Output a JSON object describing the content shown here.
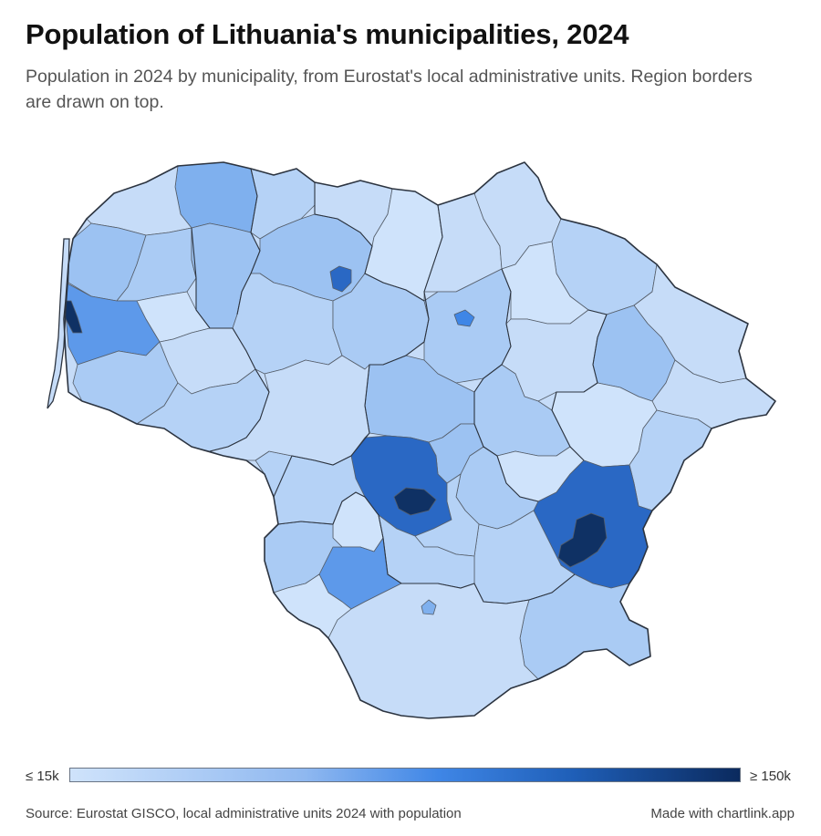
{
  "title": "Population of Lithuania's municipalities, 2024",
  "subtitle": "Population in 2024 by municipality, from Eurostat's local administrative units. Region borders are drawn on top.",
  "legend": {
    "low_label": "≤ 15k",
    "high_label": "≥ 150k",
    "colors": [
      "#cfe3fb",
      "#8fb8f0",
      "#3f86e6",
      "#1f5fb8",
      "#0b2a5e"
    ]
  },
  "footer": {
    "source": "Source: Eurostat GISCO, local administrative units 2024 with population",
    "credit": "Made with chartlink.app"
  }
}
